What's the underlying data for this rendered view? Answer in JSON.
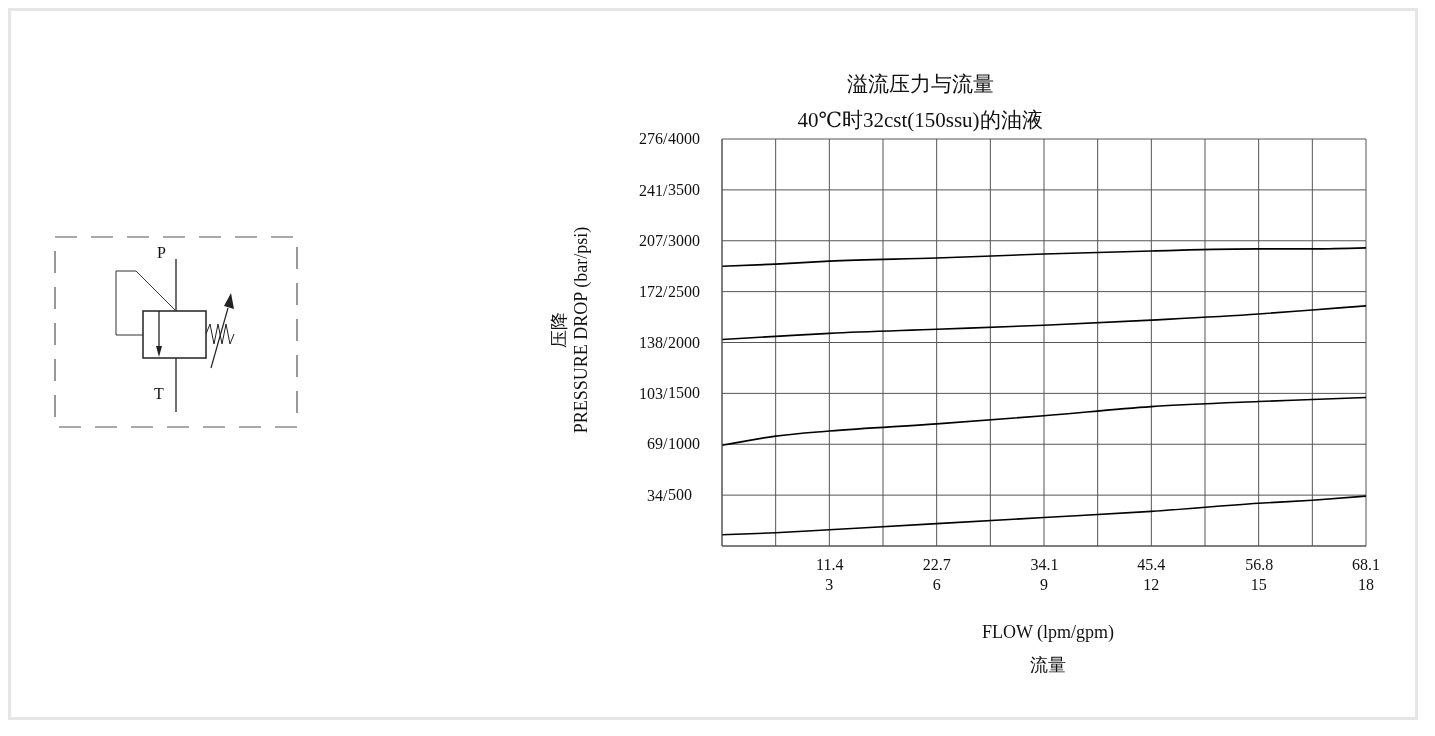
{
  "chart_data": {
    "type": "line",
    "title": "溢流压力与流量",
    "subtitle": "40℃时32cst(150ssu)的油液",
    "xlabel": "FLOW (lpm/gpm)\n流量",
    "y2label": "压降\nPRESSURE DROP (bar/psi)",
    "annotations": [
      "P",
      "T",
      "/"
    ],
    "x": [
      0,
      1.5,
      3,
      6,
      9,
      12,
      15,
      16.5,
      18
    ],
    "series": [
      {
        "color": "#000000",
        "values": [
          2750,
          2770,
          2800,
          2830,
          2870,
          2900,
          2920,
          2920,
          2930
        ]
      },
      {
        "color": "#000000",
        "values": [
          2030,
          2060,
          2090,
          2130,
          2170,
          2220,
          2280,
          2320,
          2360
        ]
      },
      {
        "color": "#000000",
        "values": [
          990,
          1080,
          1130,
          1200,
          1280,
          1370,
          1420,
          1440,
          1460
        ]
      },
      {
        "color": "#000000",
        "values": [
          110,
          130,
          160,
          220,
          280,
          340,
          420,
          450,
          490
        ]
      }
    ],
    "xlim": [
      0,
      18
    ],
    "xticks": [
      {
        "value": 0,
        "label": null
      },
      {
        "value": 1.5,
        "label": null
      },
      3,
      {
        "value": 4.5,
        "label": null
      },
      6,
      {
        "value": 7.5,
        "label": null
      },
      9,
      {
        "value": 10.5,
        "label": null
      },
      12,
      {
        "value": 13.5,
        "label": null
      },
      15,
      {
        "value": 16.5,
        "label": null
      },
      18
    ],
    "x2lim": [
      0,
      68.1
    ],
    "x2ticks": [
      11.4,
      22.7,
      34.1,
      45.4,
      56.8,
      68.1
    ],
    "ylim": [
      0,
      4000
    ],
    "yticks": [
      {
        "value": 0,
        "label": null
      },
      500,
      1000,
      1500,
      2000,
      2500,
      3000,
      3500,
      4000
    ],
    "y2lim": [
      0,
      276
    ],
    "y2ticks": [
      34,
      69,
      103,
      138,
      172,
      207,
      241,
      276
    ],
    "grid": true,
    "marker": "none",
    "line_style": "solid"
  }
}
